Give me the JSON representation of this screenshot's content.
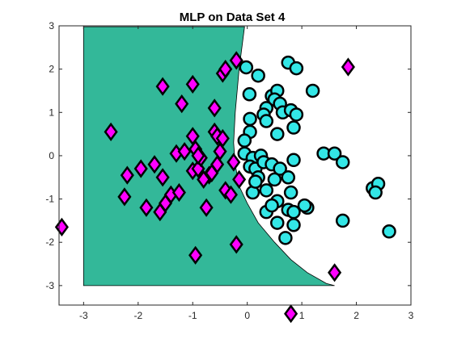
{
  "chart_data": {
    "type": "scatter",
    "title": "MLP on Data Set 4",
    "xlabel": "",
    "ylabel": "",
    "xlim": [
      -3.45,
      3
    ],
    "ylim": [
      -3.45,
      3
    ],
    "x_ticks": [
      -3,
      -2,
      -1,
      0,
      1,
      2,
      3
    ],
    "y_ticks": [
      -3,
      -2,
      -1,
      0,
      1,
      2,
      3
    ],
    "x_tick_labels": [
      "-3",
      "-2",
      "-1",
      "0",
      "1",
      "2",
      "3"
    ],
    "y_tick_labels": [
      "-3",
      "-2",
      "-1",
      "0",
      "1",
      "2",
      "3"
    ],
    "grid": false,
    "legend": "none",
    "colors": {
      "region": "#33b899",
      "class_circle": "#33e6e6",
      "class_diamond": "#ff00ff",
      "marker_edge": "#000000",
      "axes": "#262626"
    },
    "decision_region": {
      "points": [
        [
          -3.0,
          2.98
        ],
        [
          -0.05,
          2.98
        ],
        [
          -0.15,
          2.0
        ],
        [
          -0.22,
          1.0
        ],
        [
          -0.25,
          0.3
        ],
        [
          -0.22,
          -0.2
        ],
        [
          -0.15,
          -0.7
        ],
        [
          0.0,
          -1.1
        ],
        [
          0.2,
          -1.55
        ],
        [
          0.5,
          -2.0
        ],
        [
          0.8,
          -2.4
        ],
        [
          1.1,
          -2.7
        ],
        [
          1.45,
          -2.95
        ],
        [
          1.6,
          -3.0
        ],
        [
          -3.0,
          -3.0
        ]
      ]
    },
    "series": [
      {
        "marker": "circle",
        "points": [
          [
            -0.02,
            2.04
          ],
          [
            0.04,
            1.42
          ],
          [
            0.2,
            1.85
          ],
          [
            0.75,
            2.15
          ],
          [
            0.9,
            2.02
          ],
          [
            0.45,
            1.38
          ],
          [
            0.55,
            1.5
          ],
          [
            1.2,
            1.5
          ],
          [
            0.5,
            1.3
          ],
          [
            0.35,
            1.1
          ],
          [
            0.6,
            1.2
          ],
          [
            0.3,
            0.95
          ],
          [
            0.65,
            1.0
          ],
          [
            0.8,
            1.05
          ],
          [
            0.9,
            0.95
          ],
          [
            0.85,
            0.65
          ],
          [
            0.05,
            0.85
          ],
          [
            0.05,
            0.55
          ],
          [
            0.35,
            0.8
          ],
          [
            -0.05,
            0.35
          ],
          [
            0.55,
            0.5
          ],
          [
            -0.05,
            0.05
          ],
          [
            0.1,
            -0.05
          ],
          [
            0.05,
            -0.25
          ],
          [
            0.25,
            0.0
          ],
          [
            0.15,
            -0.3
          ],
          [
            0.2,
            -0.5
          ],
          [
            0.3,
            -0.15
          ],
          [
            0.45,
            -0.2
          ],
          [
            0.6,
            -0.3
          ],
          [
            0.5,
            -0.55
          ],
          [
            0.35,
            -0.8
          ],
          [
            0.1,
            -0.85
          ],
          [
            0.75,
            -0.5
          ],
          [
            0.8,
            -0.85
          ],
          [
            0.55,
            -1.05
          ],
          [
            0.75,
            -1.25
          ],
          [
            0.85,
            -1.3
          ],
          [
            0.35,
            -1.3
          ],
          [
            0.55,
            -1.55
          ],
          [
            0.85,
            -1.6
          ],
          [
            0.7,
            -1.9
          ],
          [
            1.1,
            -1.2
          ],
          [
            1.05,
            -1.15
          ],
          [
            0.85,
            -0.1
          ],
          [
            1.4,
            0.05
          ],
          [
            1.6,
            0.05
          ],
          [
            1.75,
            -0.15
          ],
          [
            2.3,
            -0.75
          ],
          [
            2.4,
            -0.65
          ],
          [
            2.35,
            -0.85
          ],
          [
            2.6,
            -1.75
          ],
          [
            1.75,
            -1.5
          ],
          [
            0.15,
            -0.6
          ],
          [
            0.45,
            -1.15
          ]
        ]
      },
      {
        "marker": "diamond",
        "points": [
          [
            -3.4,
            -1.65
          ],
          [
            -2.5,
            0.55
          ],
          [
            -2.2,
            -0.45
          ],
          [
            -2.25,
            -0.95
          ],
          [
            -1.95,
            -0.3
          ],
          [
            -1.85,
            -1.2
          ],
          [
            -1.7,
            -0.2
          ],
          [
            -1.55,
            -0.5
          ],
          [
            -1.6,
            -1.3
          ],
          [
            -1.5,
            -1.1
          ],
          [
            -1.4,
            -0.9
          ],
          [
            -1.25,
            -0.85
          ],
          [
            -1.3,
            0.05
          ],
          [
            -1.15,
            0.1
          ],
          [
            -1.55,
            1.6
          ],
          [
            -1.2,
            1.2
          ],
          [
            -1.0,
            1.65
          ],
          [
            -1.0,
            0.45
          ],
          [
            -0.95,
            0.15
          ],
          [
            -1.0,
            -0.35
          ],
          [
            -0.9,
            -0.3
          ],
          [
            -0.85,
            -0.05
          ],
          [
            -0.7,
            -0.45
          ],
          [
            -0.75,
            -1.2
          ],
          [
            -0.6,
            0.55
          ],
          [
            -0.55,
            0.45
          ],
          [
            -0.45,
            0.4
          ],
          [
            -0.5,
            0.1
          ],
          [
            -0.6,
            1.1
          ],
          [
            -0.45,
            1.9
          ],
          [
            -0.4,
            2.0
          ],
          [
            -0.2,
            2.2
          ],
          [
            -0.4,
            -0.8
          ],
          [
            -0.3,
            -0.9
          ],
          [
            -0.25,
            -0.15
          ],
          [
            -0.15,
            -0.55
          ],
          [
            -0.55,
            -0.2
          ],
          [
            -0.65,
            -0.4
          ],
          [
            -0.95,
            -2.3
          ],
          [
            -0.2,
            -2.05
          ],
          [
            0.8,
            -3.65
          ],
          [
            1.6,
            -2.7
          ],
          [
            1.85,
            2.05
          ],
          [
            -0.8,
            -0.55
          ],
          [
            -0.9,
            0.0
          ]
        ]
      }
    ]
  }
}
